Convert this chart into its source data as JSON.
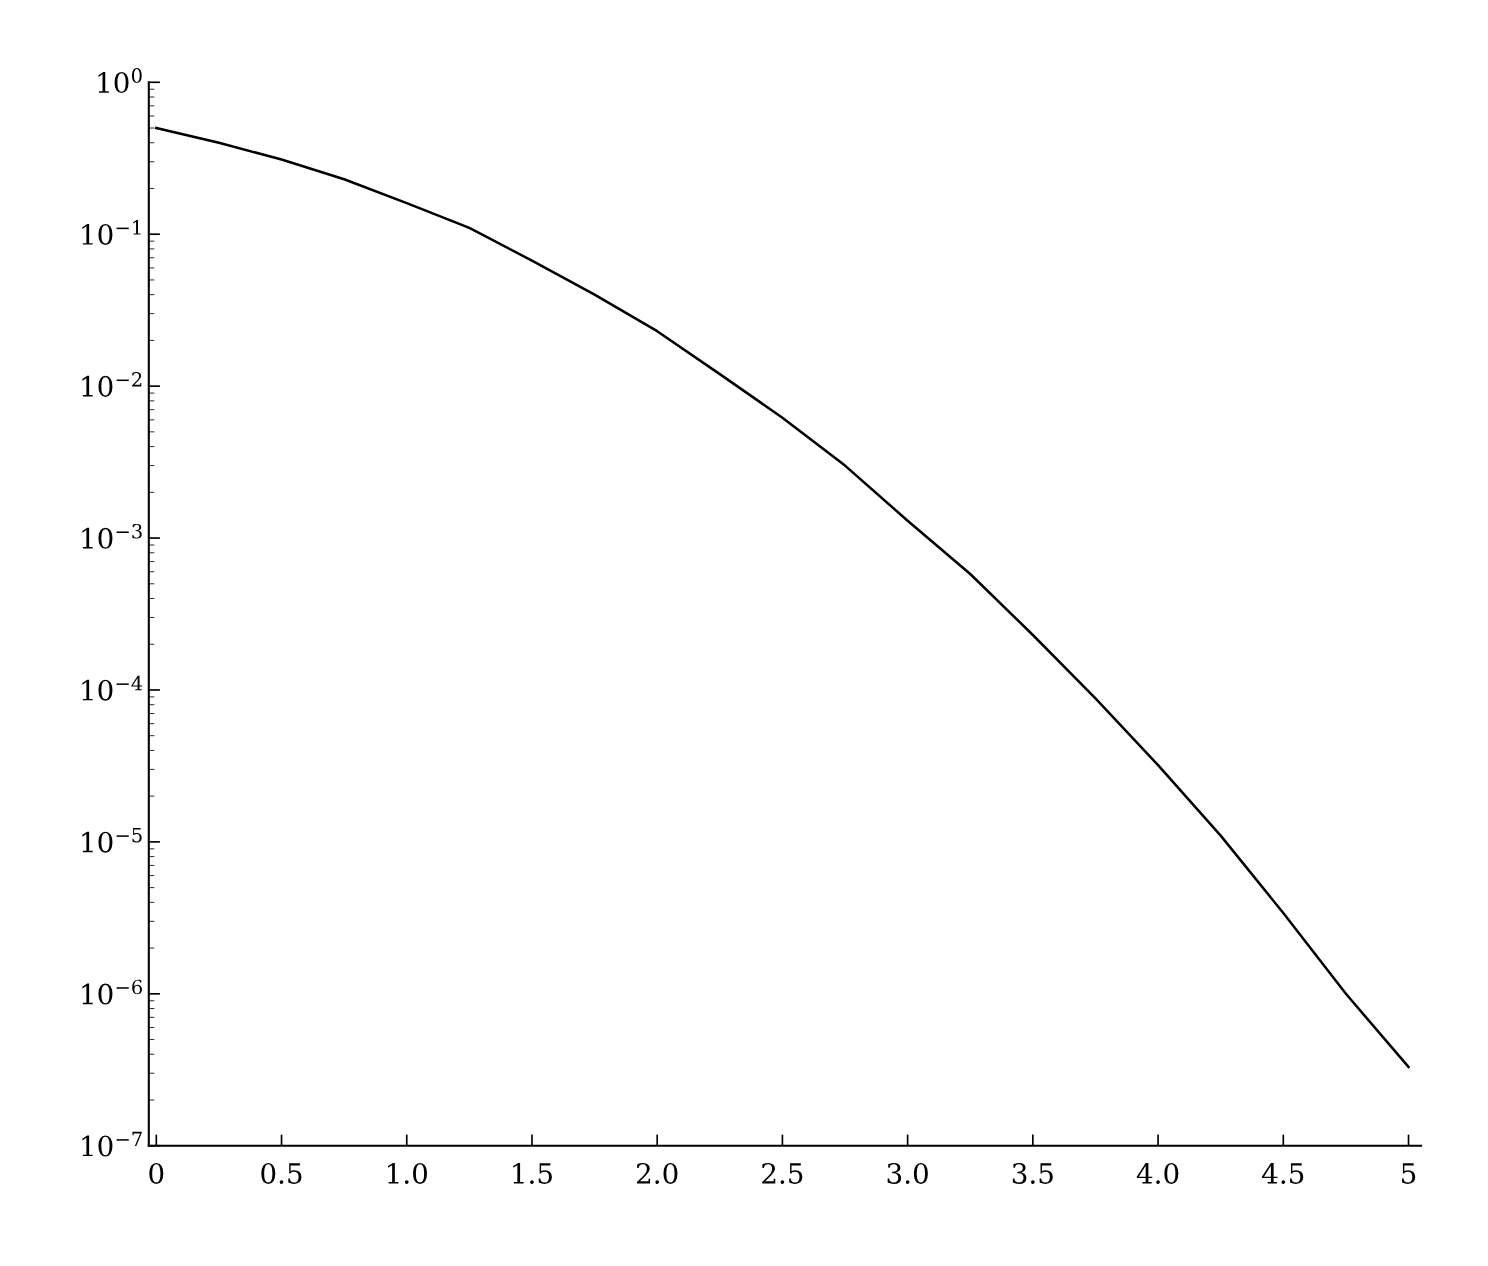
{
  "chart_data": {
    "type": "line",
    "log": "y",
    "color": "#000000",
    "line_style": "solid",
    "marker": "none",
    "grid": false,
    "legend": false,
    "x": [
      0,
      0.25,
      0.5,
      0.75,
      1,
      1.25,
      1.5,
      1.75,
      2,
      2.25,
      2.5,
      2.75,
      3,
      3.25,
      3.5,
      3.75,
      4,
      4.25,
      4.5,
      4.75,
      5
    ],
    "values": [
      0.5,
      0.4,
      0.31,
      0.23,
      0.16,
      0.11,
      0.067,
      0.04,
      0.023,
      0.012,
      0.0062,
      0.003,
      0.0013,
      0.00058,
      0.00023,
      8.8e-05,
      3.2e-05,
      1.1e-05,
      3.4e-06,
      1e-06,
      3.3e-07
    ],
    "xlim": [
      -0.03,
      5.05
    ],
    "ylim": [
      1e-07,
      1
    ],
    "xticks": [
      0,
      0.5,
      {
        "value": 1,
        "label": "1.0"
      },
      1.5,
      {
        "value": 2,
        "label": "2.0"
      },
      2.5,
      {
        "value": 3,
        "label": "3.0"
      },
      3.5,
      {
        "value": 4,
        "label": "4.0"
      },
      4.5,
      5
    ],
    "yticks": [
      {
        "value": 1e-07,
        "label": "10$^{−7}$"
      },
      {
        "value": 1e-06,
        "label": "10$^{−6}$"
      },
      {
        "value": 1e-05,
        "label": "10$^{−5}$"
      },
      {
        "value": 0.0001,
        "label": "10$^{−4}$"
      },
      {
        "value": 0.001,
        "label": "10$^{−3}$"
      },
      {
        "value": 0.01,
        "label": "10$^{−2}$"
      },
      {
        "value": 0.1,
        "label": "10$^{−1}$"
      },
      {
        "value": 1,
        "label": "10$^{0}$"
      }
    ]
  }
}
